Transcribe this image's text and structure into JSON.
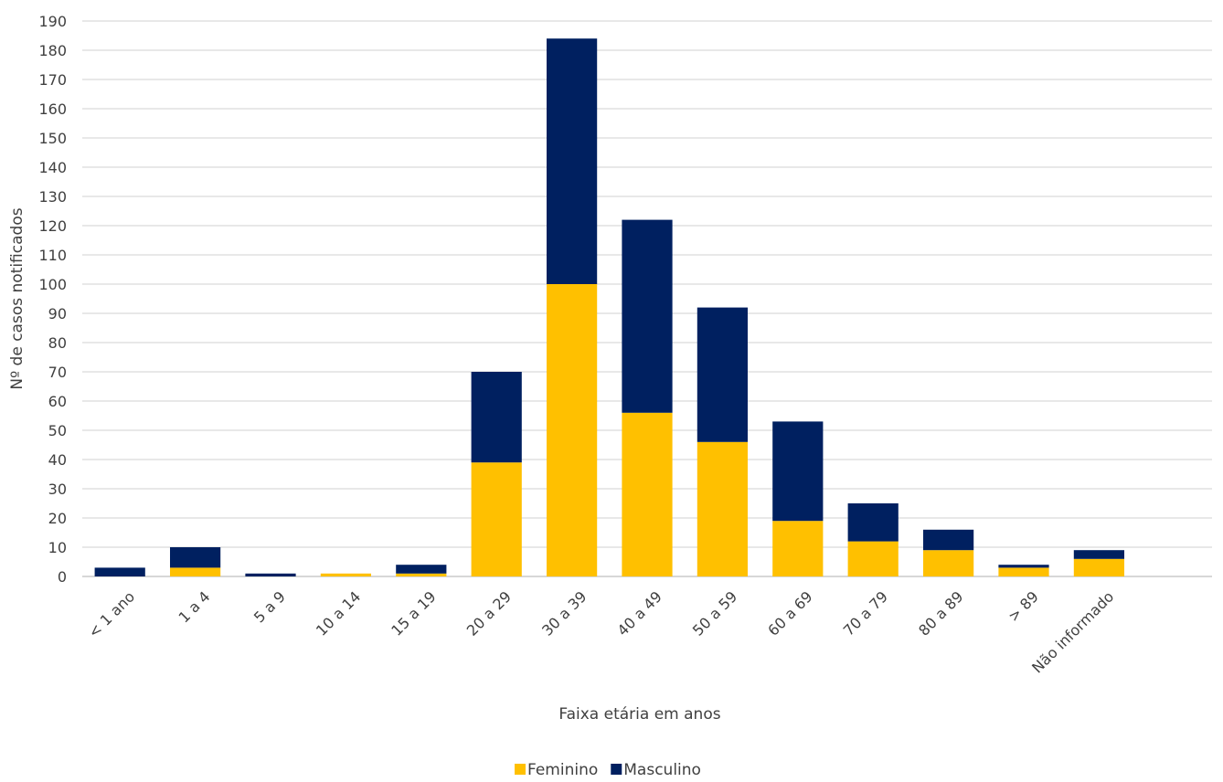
{
  "chart_data": {
    "type": "bar",
    "stacked": true,
    "title": "",
    "xlabel": "Faixa etária em anos",
    "ylabel": "Nº de casos notificados",
    "ylim": [
      0,
      190
    ],
    "ytick_step": 10,
    "grid": true,
    "legend_position": "bottom",
    "categories": [
      "< 1 ano",
      "1 a 4",
      "5 a 9",
      "10 a 14",
      "15 a 19",
      "20 a 29",
      "30 a 39",
      "40 a 49",
      "50 a 59",
      "60 a 69",
      "70 a 79",
      "80 a 89",
      "> 89",
      "Não informado"
    ],
    "series": [
      {
        "name": "Feminino",
        "color": "#FFC000",
        "values": [
          0,
          3,
          0,
          1,
          1,
          39,
          100,
          56,
          46,
          19,
          12,
          9,
          3,
          6
        ]
      },
      {
        "name": "Masculino",
        "color": "#002060",
        "values": [
          3,
          7,
          1,
          0,
          3,
          31,
          84,
          66,
          46,
          34,
          13,
          7,
          1,
          3
        ]
      }
    ]
  }
}
